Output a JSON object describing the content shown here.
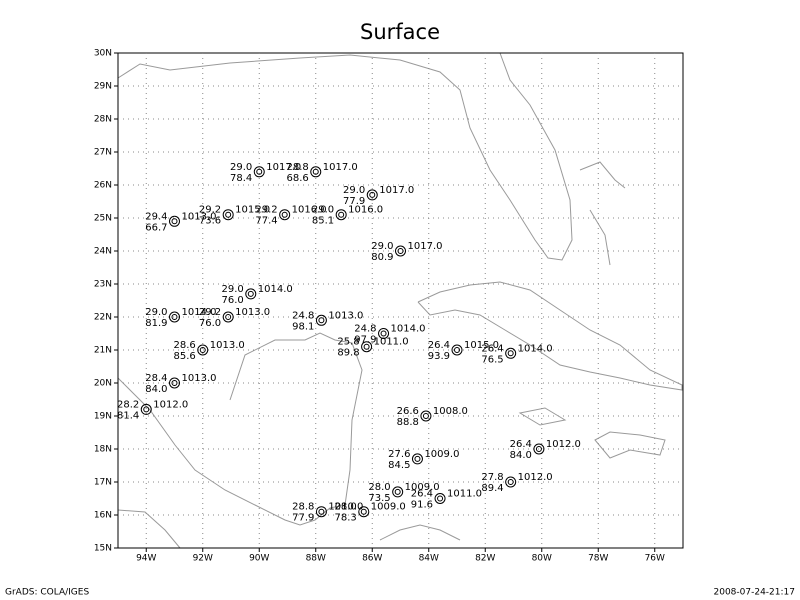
{
  "map": {
    "title": "Surface",
    "xlim": [
      -95,
      -75
    ],
    "ylim": [
      15,
      30
    ],
    "xticks": [
      {
        "value": -94,
        "label": "94W"
      },
      {
        "value": -92,
        "label": "92W"
      },
      {
        "value": -90,
        "label": "90W"
      },
      {
        "value": -88,
        "label": "88W"
      },
      {
        "value": -86,
        "label": "86W"
      },
      {
        "value": -84,
        "label": "84W"
      },
      {
        "value": -82,
        "label": "82W"
      },
      {
        "value": -80,
        "label": "80W"
      },
      {
        "value": -78,
        "label": "78W"
      },
      {
        "value": -76,
        "label": "76W"
      }
    ],
    "yticks": [
      {
        "value": 15,
        "label": "15N"
      },
      {
        "value": 16,
        "label": "16N"
      },
      {
        "value": 17,
        "label": "17N"
      },
      {
        "value": 18,
        "label": "18N"
      },
      {
        "value": 19,
        "label": "19N"
      },
      {
        "value": 20,
        "label": "20N"
      },
      {
        "value": 21,
        "label": "21N"
      },
      {
        "value": 22,
        "label": "22N"
      },
      {
        "value": 23,
        "label": "23N"
      },
      {
        "value": 24,
        "label": "24N"
      },
      {
        "value": 25,
        "label": "25N"
      },
      {
        "value": 26,
        "label": "26N"
      },
      {
        "value": 27,
        "label": "27N"
      },
      {
        "value": 28,
        "label": "28N"
      },
      {
        "value": 29,
        "label": "29N"
      },
      {
        "value": 30,
        "label": "30N"
      }
    ],
    "grid": true,
    "stations": [
      {
        "lon": -90.0,
        "lat": 26.4,
        "temp": "29.0",
        "dew": "78.4",
        "pres": "1017.0"
      },
      {
        "lon": -88.0,
        "lat": 26.4,
        "temp": "28.8",
        "dew": "68.6",
        "pres": "1017.0"
      },
      {
        "lon": -86.0,
        "lat": 25.7,
        "temp": "29.0",
        "dew": "77.9",
        "pres": "1017.0"
      },
      {
        "lon": -93.0,
        "lat": 24.9,
        "temp": "29.4",
        "dew": "66.7",
        "pres": "1013.0"
      },
      {
        "lon": -91.1,
        "lat": 25.1,
        "temp": "29.2",
        "dew": "73.6",
        "pres": "1015.0"
      },
      {
        "lon": -89.1,
        "lat": 25.1,
        "temp": "29.2",
        "dew": "77.4",
        "pres": "1016.0"
      },
      {
        "lon": -87.1,
        "lat": 25.1,
        "temp": "29.0",
        "dew": "85.1",
        "pres": "1016.0"
      },
      {
        "lon": -85.0,
        "lat": 24.0,
        "temp": "29.0",
        "dew": "80.9",
        "pres": "1017.0"
      },
      {
        "lon": -90.3,
        "lat": 22.7,
        "temp": "29.0",
        "dew": "76.0",
        "pres": "1014.0"
      },
      {
        "lon": -93.0,
        "lat": 22.0,
        "temp": "29.0",
        "dew": "81.9",
        "pres": "1014.0"
      },
      {
        "lon": -91.1,
        "lat": 22.0,
        "temp": "29.2",
        "dew": "76.0",
        "pres": "1013.0"
      },
      {
        "lon": -87.8,
        "lat": 21.9,
        "temp": "24.8",
        "dew": "98.1",
        "pres": "1013.0"
      },
      {
        "lon": -85.6,
        "lat": 21.5,
        "temp": "24.8",
        "dew": "97.9",
        "pres": "1014.0"
      },
      {
        "lon": -86.2,
        "lat": 21.1,
        "temp": "25.8",
        "dew": "89.8",
        "pres": "1011.0"
      },
      {
        "lon": -83.0,
        "lat": 21.0,
        "temp": "26.4",
        "dew": "93.9",
        "pres": "1015.0"
      },
      {
        "lon": -81.1,
        "lat": 20.9,
        "temp": "26.4",
        "dew": "76.5",
        "pres": "1014.0"
      },
      {
        "lon": -92.0,
        "lat": 21.0,
        "temp": "28.6",
        "dew": "85.6",
        "pres": "1013.0"
      },
      {
        "lon": -93.0,
        "lat": 20.0,
        "temp": "28.4",
        "dew": "84.0",
        "pres": "1013.0"
      },
      {
        "lon": -94.0,
        "lat": 19.2,
        "temp": "28.2",
        "dew": "81.4",
        "pres": "1012.0"
      },
      {
        "lon": -84.1,
        "lat": 19.0,
        "temp": "26.6",
        "dew": "88.8",
        "pres": "1008.0"
      },
      {
        "lon": -84.4,
        "lat": 17.7,
        "temp": "27.6",
        "dew": "84.5",
        "pres": "1009.0"
      },
      {
        "lon": -80.1,
        "lat": 18.0,
        "temp": "26.4",
        "dew": "84.0",
        "pres": "1012.0"
      },
      {
        "lon": -81.1,
        "lat": 17.0,
        "temp": "27.8",
        "dew": "89.4",
        "pres": "1012.0"
      },
      {
        "lon": -85.1,
        "lat": 16.7,
        "temp": "28.0",
        "dew": "73.5",
        "pres": "1009.0"
      },
      {
        "lon": -83.6,
        "lat": 16.5,
        "temp": "26.4",
        "dew": "91.6",
        "pres": "1011.0"
      },
      {
        "lon": -87.8,
        "lat": 16.1,
        "temp": "28.8",
        "dew": "77.9",
        "pres": "1010.0"
      },
      {
        "lon": -86.3,
        "lat": 16.1,
        "temp": "28.0",
        "dew": "78.3",
        "pres": "1009.0"
      }
    ],
    "footer_left": "GrADS: COLA/IGES",
    "footer_right": "2008-07-24-21:17"
  }
}
